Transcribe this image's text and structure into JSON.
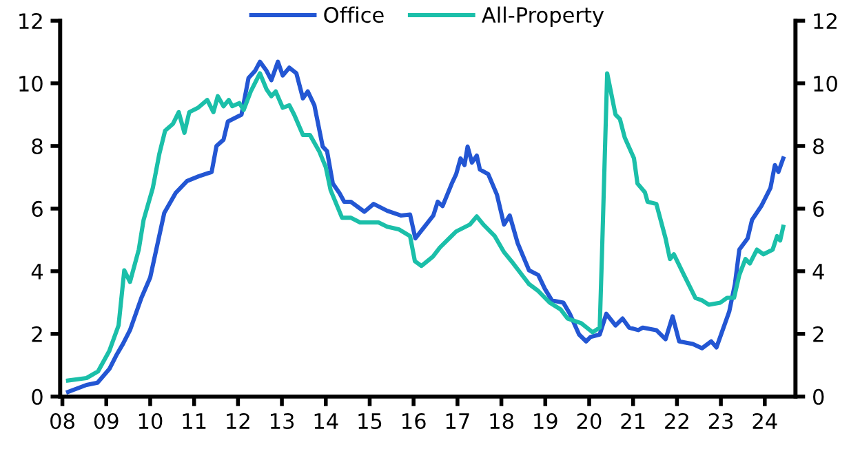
{
  "chart_data": {
    "type": "line",
    "legend": "top",
    "grid": false,
    "line_style": "solid",
    "marker": "none",
    "xlim": [
      2007.95,
      2024.7
    ],
    "ylim": [
      0,
      12
    ],
    "yticks": [
      0,
      2,
      4,
      6,
      8,
      10,
      12
    ],
    "y2lim": [
      0,
      12
    ],
    "y2ticks": [
      0,
      2,
      4,
      6,
      8,
      10,
      12
    ],
    "xticks": [
      {
        "value": 2008,
        "label": "08"
      },
      {
        "value": 2009,
        "label": "09"
      },
      {
        "value": 2010,
        "label": "10"
      },
      {
        "value": 2011,
        "label": "11"
      },
      {
        "value": 2012,
        "label": "12"
      },
      {
        "value": 2013,
        "label": "13"
      },
      {
        "value": 2014,
        "label": "14"
      },
      {
        "value": 2015,
        "label": "15"
      },
      {
        "value": 2016,
        "label": "16"
      },
      {
        "value": 2017,
        "label": "17"
      },
      {
        "value": 2018,
        "label": "18"
      },
      {
        "value": 2019,
        "label": "19"
      },
      {
        "value": 2020,
        "label": "20"
      },
      {
        "value": 2021,
        "label": "21"
      },
      {
        "value": 2022,
        "label": "22"
      },
      {
        "value": 2023,
        "label": "23"
      },
      {
        "value": 2024,
        "label": "24"
      }
    ],
    "series": [
      {
        "name": "Office",
        "color": "#2356d3",
        "x": [
          2008.13,
          2008.55,
          2008.8,
          2009.07,
          2009.23,
          2009.38,
          2009.54,
          2009.8,
          2010.0,
          2010.32,
          2010.58,
          2010.84,
          2011.1,
          2011.4,
          2011.51,
          2011.67,
          2011.77,
          2012.08,
          2012.24,
          2012.39,
          2012.5,
          2012.65,
          2012.76,
          2012.91,
          2013.02,
          2013.17,
          2013.33,
          2013.48,
          2013.59,
          2013.74,
          2013.93,
          2014.03,
          2014.16,
          2014.31,
          2014.42,
          2014.57,
          2014.88,
          2015.09,
          2015.4,
          2015.71,
          2015.92,
          2016.04,
          2016.45,
          2016.55,
          2016.66,
          2016.87,
          2016.97,
          2017.07,
          2017.16,
          2017.23,
          2017.33,
          2017.44,
          2017.51,
          2017.7,
          2017.9,
          2018.06,
          2018.19,
          2018.37,
          2018.63,
          2018.84,
          2018.99,
          2019.15,
          2019.41,
          2019.56,
          2019.77,
          2019.93,
          2020.03,
          2020.24,
          2020.39,
          2020.6,
          2020.76,
          2020.91,
          2021.12,
          2021.22,
          2021.53,
          2021.74,
          2021.9,
          2022.05,
          2022.36,
          2022.57,
          2022.78,
          2022.9,
          2023.04,
          2023.19,
          2023.32,
          2023.42,
          2023.61,
          2023.71,
          2023.92,
          2024.13,
          2024.23,
          2024.31,
          2024.42
        ],
        "values": [
          0.15,
          0.37,
          0.44,
          0.88,
          1.32,
          1.68,
          2.12,
          3.15,
          3.8,
          5.86,
          6.5,
          6.88,
          7.03,
          7.17,
          8.0,
          8.2,
          8.78,
          9.0,
          10.17,
          10.4,
          10.69,
          10.4,
          10.1,
          10.69,
          10.25,
          10.5,
          10.32,
          9.52,
          9.74,
          9.3,
          7.98,
          7.83,
          6.8,
          6.5,
          6.22,
          6.22,
          5.9,
          6.15,
          5.93,
          5.78,
          5.81,
          5.05,
          5.78,
          6.22,
          6.08,
          6.8,
          7.1,
          7.6,
          7.39,
          7.98,
          7.47,
          7.69,
          7.25,
          7.1,
          6.44,
          5.49,
          5.78,
          4.9,
          4.03,
          3.88,
          3.44,
          3.07,
          3.0,
          2.64,
          1.98,
          1.76,
          1.9,
          1.98,
          2.64,
          2.27,
          2.49,
          2.2,
          2.12,
          2.2,
          2.12,
          1.83,
          2.56,
          1.76,
          1.68,
          1.54,
          1.76,
          1.57,
          2.12,
          2.71,
          3.59,
          4.69,
          5.05,
          5.64,
          6.08,
          6.66,
          7.39,
          7.17,
          7.6
        ]
      },
      {
        "name": "All-Property",
        "color": "#1bbfa9",
        "x": [
          2008.13,
          2008.55,
          2008.81,
          2009.07,
          2009.28,
          2009.41,
          2009.54,
          2009.74,
          2009.85,
          2010.06,
          2010.21,
          2010.34,
          2010.52,
          2010.65,
          2010.78,
          2010.89,
          2011.09,
          2011.3,
          2011.44,
          2011.54,
          2011.67,
          2011.79,
          2011.87,
          2012.03,
          2012.13,
          2012.29,
          2012.5,
          2012.65,
          2012.76,
          2012.86,
          2013.02,
          2013.17,
          2013.28,
          2013.48,
          2013.64,
          2013.85,
          2014.0,
          2014.11,
          2014.37,
          2014.57,
          2014.78,
          2015.2,
          2015.4,
          2015.66,
          2015.92,
          2016.03,
          2016.18,
          2016.44,
          2016.6,
          2016.86,
          2016.97,
          2017.28,
          2017.44,
          2017.59,
          2017.85,
          2018.06,
          2018.27,
          2018.63,
          2018.84,
          2019.1,
          2019.35,
          2019.51,
          2019.82,
          2020.08,
          2020.24,
          2020.29,
          2020.41,
          2020.6,
          2020.7,
          2020.81,
          2021.02,
          2021.1,
          2021.27,
          2021.33,
          2021.53,
          2021.74,
          2021.84,
          2021.93,
          2022.16,
          2022.42,
          2022.57,
          2022.73,
          2022.99,
          2023.14,
          2023.3,
          2023.42,
          2023.56,
          2023.66,
          2023.82,
          2023.97,
          2024.18,
          2024.28,
          2024.35,
          2024.42
        ],
        "values": [
          0.51,
          0.59,
          0.8,
          1.46,
          2.27,
          4.03,
          3.66,
          4.69,
          5.64,
          6.66,
          7.76,
          8.49,
          8.71,
          9.08,
          8.42,
          9.08,
          9.22,
          9.47,
          9.08,
          9.59,
          9.27,
          9.47,
          9.27,
          9.37,
          9.15,
          9.74,
          10.32,
          9.81,
          9.59,
          9.74,
          9.22,
          9.3,
          9.0,
          8.35,
          8.35,
          7.83,
          7.32,
          6.59,
          5.71,
          5.71,
          5.56,
          5.56,
          5.42,
          5.34,
          5.12,
          4.32,
          4.17,
          4.47,
          4.76,
          5.12,
          5.27,
          5.49,
          5.75,
          5.49,
          5.12,
          4.61,
          4.25,
          3.59,
          3.37,
          3.0,
          2.78,
          2.49,
          2.34,
          2.05,
          2.2,
          4.47,
          10.32,
          9.0,
          8.86,
          8.27,
          7.61,
          6.8,
          6.52,
          6.22,
          6.15,
          5.05,
          4.39,
          4.54,
          3.88,
          3.15,
          3.07,
          2.93,
          3.0,
          3.15,
          3.15,
          3.88,
          4.39,
          4.25,
          4.69,
          4.54,
          4.69,
          5.12,
          4.98,
          5.42
        ]
      }
    ]
  }
}
